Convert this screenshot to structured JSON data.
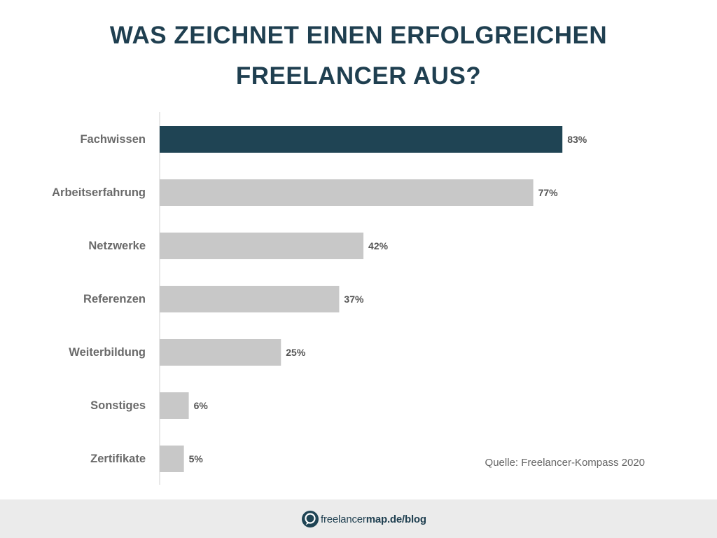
{
  "chart_data": {
    "type": "bar",
    "orientation": "horizontal",
    "title_lines": [
      "WAS ZEICHNET EINEN ERFOLGREICHEN",
      "FREELANCER AUS?"
    ],
    "categories": [
      "Fachwissen",
      "Arbeitserfahrung",
      "Netzwerke",
      "Referenzen",
      "Weiterbildung",
      "Sonstiges",
      "Zertifikate"
    ],
    "values": [
      83,
      77,
      42,
      37,
      25,
      6,
      5
    ],
    "value_labels": [
      "83%",
      "77%",
      "42%",
      "37%",
      "25%",
      "6%",
      "5%"
    ],
    "xlim": [
      0,
      100
    ],
    "grid": false,
    "colors": {
      "highlight": "#1f4454",
      "default": "#c8c8c8",
      "axis": "#e0e0e0"
    },
    "highlight_index": 0
  },
  "source": "Quelle: Freelancer-Kompass 2020",
  "footer": {
    "logo_part1": "freelancer",
    "logo_part2": "map",
    "logo_part3": ".de/blog",
    "logo_icon": "freelancermap-logo-icon"
  }
}
